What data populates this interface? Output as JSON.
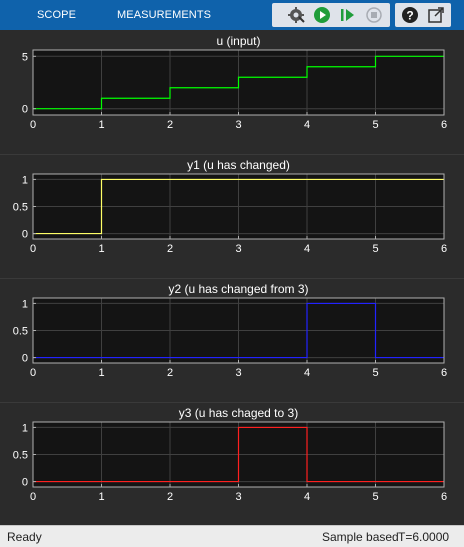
{
  "toolbar": {
    "tabs": [
      {
        "label": "SCOPE"
      },
      {
        "label": "MEASUREMENTS"
      }
    ],
    "buttons": [
      {
        "name": "settings-button",
        "icon": "gear-icon"
      },
      {
        "name": "run-button",
        "icon": "play-icon"
      },
      {
        "name": "step-forward-button",
        "icon": "step-forward-icon"
      },
      {
        "name": "stop-button",
        "icon": "stop-icon"
      },
      {
        "name": "help-button",
        "icon": "help-icon"
      },
      {
        "name": "undock-button",
        "icon": "undock-icon"
      }
    ]
  },
  "colors": {
    "toolbar_bg": "#0f62ab",
    "panel_bg": "#2b2b2b",
    "axes_bg": "#141414",
    "grid": "#404040",
    "tick_text": "#ffffff",
    "u": "#00ff00",
    "y1": "#ffff66",
    "y2": "#2222ff",
    "y3": "#ff2020"
  },
  "chart_data": [
    {
      "type": "line",
      "title": "u (input)",
      "xlim": [
        0,
        6
      ],
      "ylim": [
        -0.6,
        5.6
      ],
      "xticks": [
        0,
        1,
        2,
        3,
        4,
        5,
        6
      ],
      "yticks": [
        0,
        5
      ],
      "grid": true,
      "series": [
        {
          "color": "#00ff00",
          "step": true,
          "x": [
            0,
            1,
            2,
            3,
            4,
            5,
            6
          ],
          "y": [
            0,
            1,
            2,
            3,
            4,
            5,
            5
          ]
        }
      ]
    },
    {
      "type": "line",
      "title": "y1 (u has changed)",
      "xlim": [
        0,
        6
      ],
      "ylim": [
        -0.1,
        1.1
      ],
      "xticks": [
        0,
        1,
        2,
        3,
        4,
        5,
        6
      ],
      "yticks": [
        0,
        0.5,
        1
      ],
      "grid": true,
      "series": [
        {
          "color": "#ffff66",
          "step": true,
          "x": [
            0,
            1,
            6
          ],
          "y": [
            0,
            1,
            1
          ]
        }
      ]
    },
    {
      "type": "line",
      "title": "y2 (u has changed from 3)",
      "xlim": [
        0,
        6
      ],
      "ylim": [
        -0.1,
        1.1
      ],
      "xticks": [
        0,
        1,
        2,
        3,
        4,
        5,
        6
      ],
      "yticks": [
        0,
        0.5,
        1
      ],
      "grid": true,
      "series": [
        {
          "color": "#2222ff",
          "step": true,
          "x": [
            0,
            4,
            5,
            6
          ],
          "y": [
            0,
            1,
            0,
            0
          ]
        }
      ]
    },
    {
      "type": "line",
      "title": "y3 (u has chaged to 3)",
      "xlim": [
        0,
        6
      ],
      "ylim": [
        -0.1,
        1.1
      ],
      "xticks": [
        0,
        1,
        2,
        3,
        4,
        5,
        6
      ],
      "yticks": [
        0,
        0.5,
        1
      ],
      "grid": true,
      "series": [
        {
          "color": "#ff2020",
          "step": true,
          "x": [
            0,
            3,
            4,
            6
          ],
          "y": [
            0,
            1,
            0,
            0
          ]
        }
      ]
    }
  ],
  "statusbar": {
    "left": "Ready",
    "mode": "Sample based",
    "time": "T=6.0000"
  }
}
